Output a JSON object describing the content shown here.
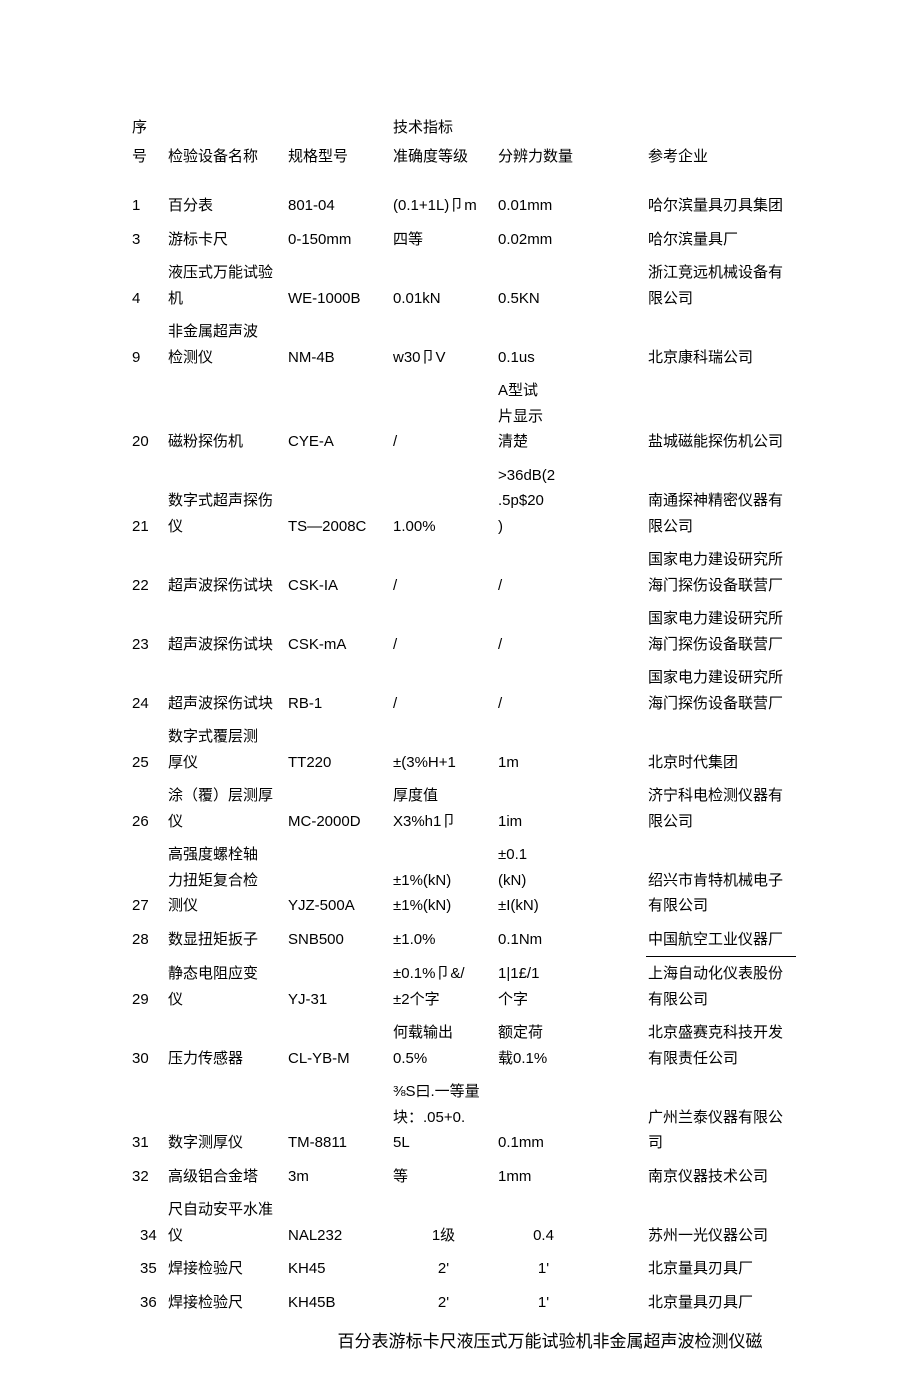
{
  "headers": {
    "seq": "序号",
    "name": "检验设备名称",
    "model": "规格型号",
    "accuracy": "技术指标准确度等级",
    "resolution": "分辨力数量",
    "company": "参考企业"
  },
  "rows": [
    {
      "seq": "1",
      "name": "百分表",
      "model": "801-04",
      "accuracy": "(0.1+1L)卩m",
      "resolution": "0.01mm",
      "company": "哈尔滨量具刃具集团"
    },
    {
      "seq": "3",
      "name": "游标卡尺",
      "model": "0-150mm",
      "accuracy": "四等",
      "resolution": "0.02mm",
      "company": "哈尔滨量具厂"
    },
    {
      "seq": "4",
      "name": "液压式万能试验机",
      "model": "WE-1000B",
      "accuracy": "0.01kN",
      "resolution": "0.5KN",
      "company": "浙江竞远机械设备有限公司"
    },
    {
      "seq": "9",
      "name": "非金属超声波\n检测仪",
      "model": "NM-4B",
      "accuracy": "w30卩V",
      "resolution": "0.1us",
      "company": "北京康科瑞公司"
    },
    {
      "seq": "20",
      "name": "磁粉探伤机",
      "model": "CYE-A",
      "accuracy": "/",
      "resolution": "A型试\n片显示\n清楚",
      "company": "盐城磁能探伤机公司"
    },
    {
      "seq": "21",
      "name": "数字式超声探伤仪",
      "model": "TS—2008C",
      "accuracy": "1.00%",
      "resolution": ">36dB(2\n.5p$20\n)",
      "company": "南通探神精密仪器有限公司"
    },
    {
      "seq": "22",
      "name": "超声波探伤试块",
      "model": "CSK-IA",
      "accuracy": "/",
      "resolution": "/",
      "company": "国家电力建设研究所海门探伤设备联营厂"
    },
    {
      "seq": "23",
      "name": "超声波探伤试块",
      "model": "CSK-mA",
      "accuracy": "/",
      "resolution": "/",
      "company": "国家电力建设研究所海门探伤设备联营厂"
    },
    {
      "seq": "24",
      "name": "超声波探伤试块",
      "model": "RB-1",
      "accuracy": "/",
      "resolution": "/",
      "company": "国家电力建设研究所海门探伤设备联营厂"
    },
    {
      "seq": "25",
      "name": "数字式覆层测\n厚仪",
      "model": "TT220",
      "accuracy": "±(3%H+1",
      "resolution": "1m",
      "company": "北京时代集团"
    },
    {
      "seq": "26",
      "name": "涂（覆）层测厚仪",
      "model": "MC-2000D",
      "accuracy": "厚度值\nX3%h1卩",
      "resolution": "1im",
      "company": "济宁科电检测仪器有限公司"
    },
    {
      "seq": "27",
      "name": "高强度螺栓轴\n力扭矩复合检\n测仪",
      "model": "YJZ-500A",
      "accuracy": "±1%(kN)\n±1%(kN)",
      "resolution": "±0.1\n(kN)\n±I(kN)",
      "company": "绍兴市肯特机械电子有限公司"
    },
    {
      "seq": "28",
      "name": "数显扭矩扳子",
      "model": "SNB500",
      "accuracy": "±1.0%",
      "resolution": "0.1Nm",
      "company": "中国航空工业仪器厂",
      "underline": true
    },
    {
      "seq": "29",
      "name": "静态电阻应变\n仪",
      "model": "YJ-31",
      "accuracy": "±0.1%卩&/\n±2个字",
      "resolution": "1|1£/1\n个字",
      "company": "上海自动化仪表股份有限公司"
    },
    {
      "seq": "30",
      "name": "压力传感器",
      "model": "CL-YB-M",
      "accuracy": "何载输出\n0.5%",
      "resolution": "额定荷\n载0.1%",
      "company": "北京盛赛克科技开发有限责任公司"
    },
    {
      "seq": "31",
      "name": "数字测厚仪",
      "model": "TM-8811",
      "accuracy": "⅜S曰.一等量\n块：.05+0.\n5L",
      "resolution": "0.1mm",
      "company": "广州兰泰仪器有限公司"
    },
    {
      "seq": "32",
      "name": "高级铝合金塔",
      "model": "3m",
      "accuracy": "等",
      "resolution": "1mm",
      "company": "南京仪器技术公司"
    },
    {
      "seq": "34",
      "name": "尺自动安平水准仪",
      "model": "NAL232",
      "accuracy": "1级",
      "resolution": "0.4",
      "company": "苏州一光仪器公司",
      "indent": true
    },
    {
      "seq": "35",
      "name": "焊接检验尺",
      "model": "KH45",
      "accuracy": "2'",
      "resolution": "1'",
      "company": "北京量具刃具厂",
      "indent": true
    },
    {
      "seq": "36",
      "name": "焊接检验尺",
      "model": "KH45B",
      "accuracy": "2'",
      "resolution": "1'",
      "company": "北京量具刃具厂",
      "indent": true
    }
  ],
  "footer": "百分表游标卡尺液压式万能试验机非金属超声波检测仪磁"
}
